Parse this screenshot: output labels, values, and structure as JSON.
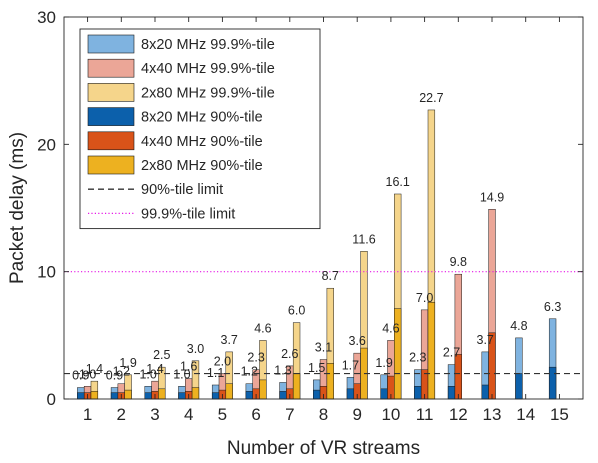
{
  "chart_data": {
    "type": "bar",
    "xlabel": "Number of VR streams",
    "ylabel": "Packet delay (ms)",
    "ylim": [
      0,
      30
    ],
    "xlim": [
      0.3,
      15.7
    ],
    "yticks": [
      0,
      10,
      20,
      30
    ],
    "ytick_labels": [
      "0",
      "10",
      "20",
      "30"
    ],
    "categories": [
      "1",
      "2",
      "3",
      "4",
      "5",
      "6",
      "7",
      "8",
      "9",
      "10",
      "11",
      "12",
      "13",
      "14",
      "15"
    ],
    "grid": false,
    "legend_position": "top-left",
    "series": [
      {
        "name": "8x20 MHz 99.9%-tile",
        "color": "#7fb3e0",
        "group": 0,
        "layer": "back",
        "values": [
          0.9,
          0.9,
          1.0,
          1.0,
          1.1,
          1.2,
          1.3,
          1.5,
          1.7,
          1.9,
          2.3,
          2.7,
          3.7,
          4.8,
          6.3
        ]
      },
      {
        "name": "4x40 MHz 99.9%-tile",
        "color": "#eba697",
        "group": 1,
        "layer": "back",
        "values": [
          1.0,
          1.2,
          1.4,
          1.6,
          2.0,
          2.3,
          2.6,
          3.1,
          3.6,
          4.6,
          7.0,
          9.8,
          14.9,
          null,
          null
        ]
      },
      {
        "name": "2x80 MHz 99.9%-tile",
        "color": "#f5d58b",
        "group": 2,
        "layer": "back",
        "values": [
          1.4,
          1.9,
          2.5,
          3.0,
          3.7,
          4.6,
          6.0,
          8.7,
          11.6,
          16.1,
          22.7,
          null,
          null,
          null,
          null
        ]
      },
      {
        "name": "8x20 MHz 90%-tile",
        "color": "#0c60ab",
        "group": 0,
        "layer": "front",
        "values": [
          0.5,
          0.5,
          0.5,
          0.5,
          0.5,
          0.6,
          0.6,
          0.7,
          0.8,
          0.8,
          1.0,
          1.0,
          1.1,
          2.0,
          2.5
        ]
      },
      {
        "name": "4x40 MHz 90%-tile",
        "color": "#d95319",
        "group": 1,
        "layer": "front",
        "values": [
          0.5,
          0.5,
          0.6,
          0.6,
          0.7,
          0.8,
          0.8,
          1.0,
          1.2,
          1.8,
          2.3,
          3.5,
          5.2,
          null,
          null
        ]
      },
      {
        "name": "2x80 MHz 90%-tile",
        "color": "#edb120",
        "group": 2,
        "layer": "front",
        "values": [
          0.6,
          0.7,
          0.8,
          0.9,
          1.2,
          1.5,
          2.0,
          2.8,
          4.0,
          7.1,
          7.6,
          null,
          null,
          null,
          null
        ]
      }
    ],
    "reference_lines": [
      {
        "name": "90%-tile limit",
        "value": 2,
        "color": "#333333",
        "style": "dashed"
      },
      {
        "name": "99.9%-tile limit",
        "value": 10,
        "color": "#e617e6",
        "style": "dotted"
      }
    ],
    "annotations": [
      {
        "text": "0.9",
        "category": "1",
        "group": 0,
        "value": 0.9
      },
      {
        "text": "1.0",
        "category": "1",
        "group": 1,
        "value": 1.0
      },
      {
        "text": "1.4",
        "category": "1",
        "group": 2,
        "value": 1.4
      },
      {
        "text": "0.9",
        "category": "2",
        "group": 0,
        "value": 0.9
      },
      {
        "text": "1.2",
        "category": "2",
        "group": 1,
        "value": 1.2
      },
      {
        "text": "1.9",
        "category": "2",
        "group": 2,
        "value": 1.9
      },
      {
        "text": "1.0",
        "category": "3",
        "group": 0,
        "value": 1.0
      },
      {
        "text": "1.4",
        "category": "3",
        "group": 1,
        "value": 1.4
      },
      {
        "text": "2.5",
        "category": "3",
        "group": 2,
        "value": 2.5
      },
      {
        "text": "1.0",
        "category": "4",
        "group": 0,
        "value": 1.0
      },
      {
        "text": "1.6",
        "category": "4",
        "group": 1,
        "value": 1.6
      },
      {
        "text": "3.0",
        "category": "4",
        "group": 2,
        "value": 3.0
      },
      {
        "text": "1.1",
        "category": "5",
        "group": 0,
        "value": 1.1
      },
      {
        "text": "2.0",
        "category": "5",
        "group": 1,
        "value": 2.0
      },
      {
        "text": "3.7",
        "category": "5",
        "group": 2,
        "value": 3.7
      },
      {
        "text": "1.2",
        "category": "6",
        "group": 0,
        "value": 1.2
      },
      {
        "text": "2.3",
        "category": "6",
        "group": 1,
        "value": 2.3
      },
      {
        "text": "4.6",
        "category": "6",
        "group": 2,
        "value": 4.6
      },
      {
        "text": "1.3",
        "category": "7",
        "group": 0,
        "value": 1.3
      },
      {
        "text": "2.6",
        "category": "7",
        "group": 1,
        "value": 2.6
      },
      {
        "text": "6.0",
        "category": "7",
        "group": 2,
        "value": 6.0
      },
      {
        "text": "1.5",
        "category": "8",
        "group": 0,
        "value": 1.5
      },
      {
        "text": "3.1",
        "category": "8",
        "group": 1,
        "value": 3.1
      },
      {
        "text": "8.7",
        "category": "8",
        "group": 2,
        "value": 8.7
      },
      {
        "text": "1.7",
        "category": "9",
        "group": 0,
        "value": 1.7
      },
      {
        "text": "3.6",
        "category": "9",
        "group": 1,
        "value": 3.6
      },
      {
        "text": "11.6",
        "category": "9",
        "group": 2,
        "value": 11.6
      },
      {
        "text": "1.9",
        "category": "10",
        "group": 0,
        "value": 1.9
      },
      {
        "text": "4.6",
        "category": "10",
        "group": 1,
        "value": 4.6
      },
      {
        "text": "16.1",
        "category": "10",
        "group": 2,
        "value": 16.1
      },
      {
        "text": "2.3",
        "category": "11",
        "group": 0,
        "value": 2.3
      },
      {
        "text": "7.0",
        "category": "11",
        "group": 1,
        "value": 7.0
      },
      {
        "text": "22.7",
        "category": "11",
        "group": 2,
        "value": 22.7
      },
      {
        "text": "2.7",
        "category": "12",
        "group": 0,
        "value": 2.7
      },
      {
        "text": "9.8",
        "category": "12",
        "group": 1,
        "value": 9.8
      },
      {
        "text": "3.7",
        "category": "13",
        "group": 0,
        "value": 3.7
      },
      {
        "text": "14.9",
        "category": "13",
        "group": 1,
        "value": 14.9
      },
      {
        "text": "4.8",
        "category": "14",
        "group": 0,
        "value": 4.8
      },
      {
        "text": "6.3",
        "category": "15",
        "group": 0,
        "value": 6.3
      }
    ]
  }
}
